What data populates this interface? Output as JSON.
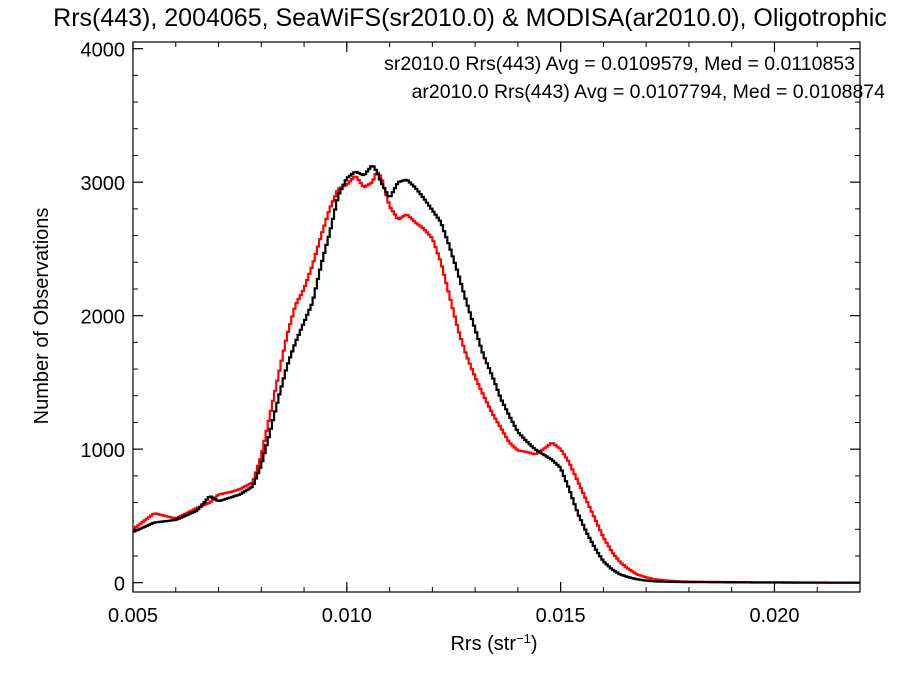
{
  "chart_data": {
    "type": "line",
    "title": "Rrs(443), 2004065, SeaWiFS(sr2010.0) & MODISA(ar2010.0), Oligotrophic",
    "xlabel": "Rrs (str",
    "xlabel_sup": "−1",
    "xlabel_close": ")",
    "ylabel": "Number of Observations",
    "xlim": [
      0.005,
      0.022
    ],
    "ylim": [
      -70,
      4050
    ],
    "x_ticks": [
      {
        "value": 0.005,
        "label": "0.005"
      },
      {
        "value": 0.01,
        "label": "0.010"
      },
      {
        "value": 0.015,
        "label": "0.015"
      },
      {
        "value": 0.02,
        "label": "0.020"
      }
    ],
    "y_ticks": [
      {
        "value": 0,
        "label": "0"
      },
      {
        "value": 1000,
        "label": "1000"
      },
      {
        "value": 2000,
        "label": "2000"
      },
      {
        "value": 3000,
        "label": "3000"
      },
      {
        "value": 4000,
        "label": "4000"
      }
    ],
    "legend": [
      {
        "text": "sr2010.0 Rrs(443) Avg = 0.0109579, Med = 0.0110853",
        "color": "#000000"
      },
      {
        "text": "ar2010.0 Rrs(443) Avg = 0.0107794, Med = 0.0108874",
        "color": "#ff0000"
      }
    ],
    "legend_position": "top-right",
    "grid": false,
    "step_style": "histogram",
    "series": [
      {
        "color": "#000000",
        "x": [
          0.005,
          0.0055,
          0.006,
          0.0065,
          0.0068,
          0.007,
          0.0073,
          0.0075,
          0.0078,
          0.008,
          0.0082,
          0.0084,
          0.0086,
          0.0088,
          0.009,
          0.0092,
          0.0094,
          0.0096,
          0.0098,
          0.01,
          0.0102,
          0.0104,
          0.0106,
          0.0107,
          0.0108,
          0.011,
          0.0112,
          0.0114,
          0.0116,
          0.0118,
          0.012,
          0.0122,
          0.0124,
          0.0126,
          0.0128,
          0.013,
          0.0132,
          0.0134,
          0.0136,
          0.0138,
          0.014,
          0.0142,
          0.0144,
          0.0146,
          0.0148,
          0.015,
          0.0152,
          0.0154,
          0.0156,
          0.0158,
          0.016,
          0.0162,
          0.0164,
          0.0166,
          0.0168,
          0.017,
          0.0172,
          0.0175,
          0.018,
          0.019,
          0.02,
          0.021,
          0.022
        ],
        "y": [
          380,
          450,
          470,
          540,
          650,
          610,
          640,
          660,
          720,
          880,
          1120,
          1380,
          1620,
          1800,
          1950,
          2100,
          2380,
          2620,
          2900,
          3030,
          3080,
          3050,
          3130,
          3080,
          3000,
          2880,
          3000,
          3020,
          2960,
          2880,
          2790,
          2700,
          2520,
          2320,
          2100,
          1900,
          1700,
          1550,
          1380,
          1250,
          1130,
          1060,
          1000,
          960,
          920,
          860,
          700,
          520,
          380,
          260,
          160,
          100,
          60,
          40,
          25,
          15,
          10,
          6,
          4,
          2,
          1,
          0,
          0
        ]
      },
      {
        "color": "#ff0000",
        "x": [
          0.005,
          0.0055,
          0.006,
          0.0065,
          0.0068,
          0.007,
          0.0073,
          0.0075,
          0.0078,
          0.008,
          0.0082,
          0.0084,
          0.0086,
          0.0088,
          0.009,
          0.0092,
          0.0094,
          0.0096,
          0.0098,
          0.01,
          0.0102,
          0.0104,
          0.0106,
          0.0107,
          0.0108,
          0.011,
          0.0112,
          0.0114,
          0.0116,
          0.0118,
          0.012,
          0.0122,
          0.0124,
          0.0126,
          0.0128,
          0.013,
          0.0132,
          0.0134,
          0.0136,
          0.0138,
          0.014,
          0.0142,
          0.0144,
          0.0146,
          0.0148,
          0.015,
          0.0152,
          0.0154,
          0.0156,
          0.0158,
          0.016,
          0.0162,
          0.0164,
          0.0166,
          0.0168,
          0.017,
          0.0172,
          0.0175,
          0.018,
          0.019,
          0.02,
          0.021,
          0.022
        ],
        "y": [
          400,
          520,
          480,
          560,
          600,
          660,
          680,
          700,
          750,
          950,
          1250,
          1550,
          1850,
          2080,
          2200,
          2380,
          2600,
          2800,
          2950,
          2980,
          3050,
          2960,
          3000,
          3080,
          3040,
          2820,
          2720,
          2760,
          2700,
          2650,
          2580,
          2400,
          2150,
          1900,
          1700,
          1540,
          1400,
          1270,
          1160,
          1050,
          990,
          980,
          960,
          1000,
          1050,
          1000,
          900,
          760,
          620,
          480,
          340,
          230,
          150,
          100,
          60,
          40,
          25,
          15,
          8,
          4,
          2,
          1,
          0
        ]
      }
    ]
  }
}
